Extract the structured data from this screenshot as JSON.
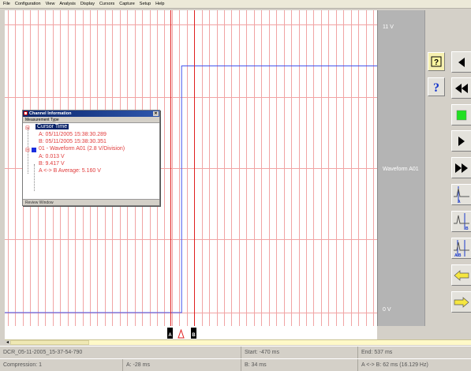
{
  "menu": [
    "File",
    "Configuration",
    "View",
    "Analysis",
    "Display",
    "Cursors",
    "Capture",
    "Setup",
    "Help"
  ],
  "scale": {
    "top": "11 V",
    "middle": "Waveform A01",
    "bottom": "0 V"
  },
  "colors": {
    "grid": "#f1a4a4",
    "waveform": "#4455ee",
    "cursor": "#e02020",
    "scale_panel": "#b4b4b4"
  },
  "waveform": {
    "step_from_value_v": 0.0,
    "step_to_value_v": 9.417,
    "step_time_fraction": 0.475
  },
  "cursors": {
    "a_label": "A",
    "b_label": "B",
    "between_icon": "triangle-icon"
  },
  "dialog": {
    "title": "Channel Information",
    "header": "Measurement Type",
    "root": "Cursor Time",
    "cursor_a": "A: 05/11/2005  15:38:30.289",
    "cursor_b": "B: 05/11/2005  15:38:30.351",
    "channel": "01 - Waveform A01 (2.8 V/Division)",
    "value_a": "A: 0.013 V",
    "value_b": "B: 9.417 V",
    "average": "A <-> B Average: 5.160 V",
    "footer": "Review Window"
  },
  "toolbar": [
    {
      "icon": "help-question-icon"
    },
    {
      "icon": "step-left-icon"
    },
    {
      "icon": "help-icon"
    },
    {
      "icon": "fast-rewind-icon"
    },
    {
      "icon": "run-green-icon"
    },
    {
      "icon": "play-icon"
    },
    {
      "icon": "fast-forward-icon"
    },
    {
      "icon": "cursor-a-icon"
    },
    {
      "icon": "cursor-b-icon"
    },
    {
      "icon": "cursor-ab-icon"
    },
    {
      "icon": "arrow-left-icon"
    },
    {
      "icon": "arrow-right-icon"
    }
  ],
  "status": {
    "row1": {
      "filename": "DCR_05-11-2005_15-37-54-790",
      "start": "Start: -470 ms",
      "end": "End: 537 ms"
    },
    "row2": {
      "compression": "Compression: 1",
      "a": "A: -28 ms",
      "b": "B: 34 ms",
      "delta": "A <-> B: 62 ms (16.129 Hz)"
    }
  }
}
